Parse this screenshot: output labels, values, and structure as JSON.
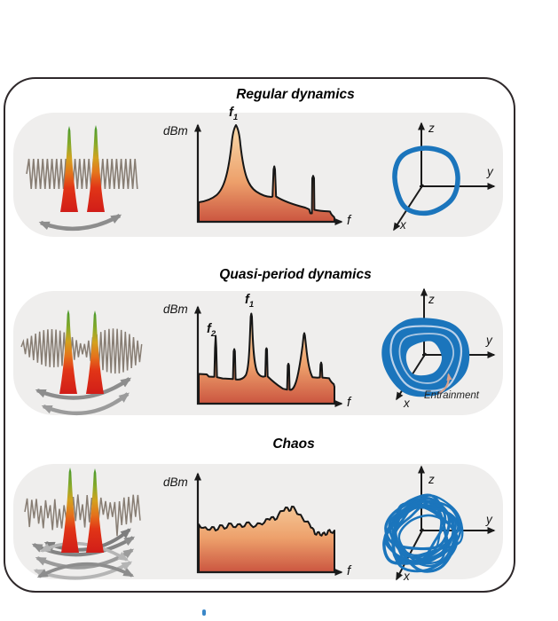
{
  "figure": {
    "panels": [
      {
        "title": "Regular dynamics",
        "spectrum": {
          "ylabel": "dBm",
          "xlabel": "f",
          "peak1": {
            "base": "f",
            "sub": "1"
          }
        },
        "phase_portrait": {
          "xlabel": "x",
          "ylabel": "y",
          "zlabel": "z",
          "type": "limit-cycle"
        }
      },
      {
        "title": "Quasi-period dynamics",
        "spectrum": {
          "ylabel": "dBm",
          "xlabel": "f",
          "peak1": {
            "base": "f",
            "sub": "1"
          },
          "peak2": {
            "base": "f",
            "sub": "2"
          }
        },
        "phase_portrait": {
          "xlabel": "x",
          "ylabel": "y",
          "zlabel": "z",
          "type": "torus",
          "annotation": "Entrainment"
        }
      },
      {
        "title": "Chaos",
        "spectrum": {
          "ylabel": "dBm",
          "xlabel": "f"
        },
        "phase_portrait": {
          "xlabel": "x",
          "ylabel": "y",
          "zlabel": "z",
          "type": "chaotic-attractor"
        }
      }
    ],
    "colors": {
      "trajectory_blue": "#1b75bc",
      "panel_bg": "#efeeed",
      "spectrum_fill_top": "#f7d2a2",
      "spectrum_fill_bottom": "#cb5540",
      "pulse_tip_green": "#44982c",
      "pulse_base_red": "#d11d18",
      "arrow_gray": "#8d8d8d",
      "annotation_arrow_salmon": "#d9a18b"
    }
  }
}
